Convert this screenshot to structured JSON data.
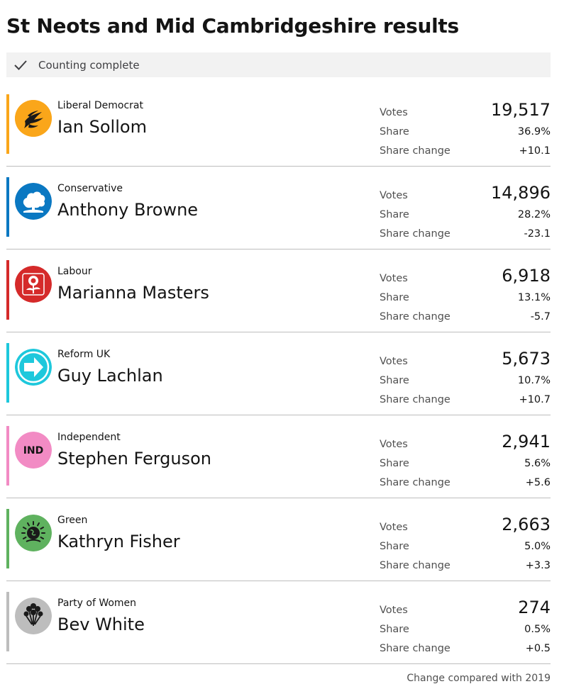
{
  "page": {
    "title": "St Neots and Mid Cambridgeshire results"
  },
  "status": {
    "text": "Counting complete",
    "icon": "check-icon"
  },
  "labels": {
    "votes": "Votes",
    "share": "Share",
    "share_change": "Share change"
  },
  "results": [
    {
      "party": "Liberal Democrat",
      "candidate": "Ian Sollom",
      "votes": "19,517",
      "share": "36.9%",
      "share_change": "+10.1",
      "color": "#FAA61A",
      "logo": "liberal-democrat-bird-icon"
    },
    {
      "party": "Conservative",
      "candidate": "Anthony Browne",
      "votes": "14,896",
      "share": "28.2%",
      "share_change": "-23.1",
      "color": "#0A78C2",
      "logo": "conservative-tree-icon"
    },
    {
      "party": "Labour",
      "candidate": "Marianna Masters",
      "votes": "6,918",
      "share": "13.1%",
      "share_change": "-5.7",
      "color": "#D52A2A",
      "logo": "labour-rose-icon"
    },
    {
      "party": "Reform UK",
      "candidate": "Guy Lachlan",
      "votes": "5,673",
      "share": "10.7%",
      "share_change": "+10.7",
      "color": "#1EC8DC",
      "logo": "reform-arrow-icon"
    },
    {
      "party": "Independent",
      "candidate": "Stephen Ferguson",
      "votes": "2,941",
      "share": "5.6%",
      "share_change": "+5.6",
      "color": "#F28BC4",
      "logo": "independent-badge",
      "logo_text": "IND"
    },
    {
      "party": "Green",
      "candidate": "Kathryn Fisher",
      "votes": "2,663",
      "share": "5.0%",
      "share_change": "+3.3",
      "color": "#5FB25F",
      "logo": "green-earth-icon"
    },
    {
      "party": "Party of Women",
      "candidate": "Bev White",
      "votes": "274",
      "share": "0.5%",
      "share_change": "+0.5",
      "color": "#BDBDBD",
      "logo": "party-of-women-flowers-icon"
    }
  ],
  "footnote": "Change compared with 2019"
}
